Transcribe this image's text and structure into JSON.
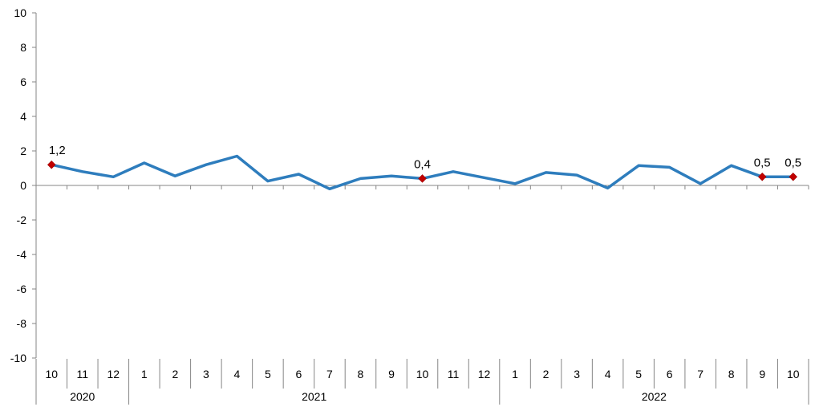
{
  "chart_data": {
    "type": "line",
    "title": "",
    "xlabel": "",
    "ylabel": "",
    "ylim": [
      -10,
      10
    ],
    "yticks": [
      10,
      8,
      6,
      4,
      2,
      0,
      -2,
      -4,
      -6,
      -8,
      -10
    ],
    "ytick_labels": [
      "10",
      "8",
      "6",
      "4",
      "2",
      "0",
      "-2",
      "-4",
      "-6",
      "-8",
      "-10"
    ],
    "grid": false,
    "legend": "none",
    "categories": [
      "10",
      "11",
      "12",
      "1",
      "2",
      "3",
      "4",
      "5",
      "6",
      "7",
      "8",
      "9",
      "10",
      "11",
      "12",
      "1",
      "2",
      "3",
      "4",
      "5",
      "6",
      "7",
      "8",
      "9",
      "10"
    ],
    "years": [
      {
        "label": "2020",
        "start": 0,
        "end": 2
      },
      {
        "label": "2021",
        "start": 3,
        "end": 14
      },
      {
        "label": "2022",
        "start": 15,
        "end": 24
      }
    ],
    "series": [
      {
        "color": "#2e7dbd",
        "values": [
          1.2,
          0.8,
          0.5,
          1.3,
          0.55,
          1.2,
          1.7,
          0.25,
          0.65,
          -0.2,
          0.4,
          0.55,
          0.4,
          0.8,
          0.45,
          0.1,
          0.75,
          0.6,
          -0.15,
          1.15,
          1.05,
          0.1,
          1.15,
          0.5,
          0.5
        ]
      }
    ],
    "highlight_color": "#c00000",
    "data_labels": [
      {
        "index": 0,
        "text": "1,2"
      },
      {
        "index": 12,
        "text": "0,4"
      },
      {
        "index": 23,
        "text": "0,5"
      },
      {
        "index": 24,
        "text": "0,5"
      }
    ]
  }
}
